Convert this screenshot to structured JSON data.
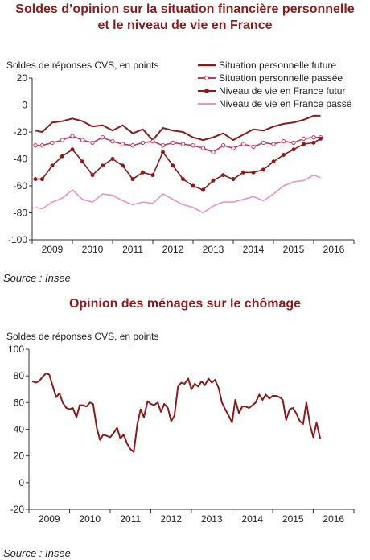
{
  "chart_data": [
    {
      "type": "line",
      "title": "Soldes d’opinion sur la situation financière personnelle",
      "subtitle": "et le niveau de vie en France",
      "ylabel": "Soldes de réponses CVS, en points",
      "ylim": [
        -100,
        20
      ],
      "yticks": [
        20,
        0,
        -20,
        -40,
        -60,
        -80,
        -100
      ],
      "xticks": [
        "2009",
        "2010",
        "2011",
        "2012",
        "2013",
        "2014",
        "2015",
        "2016"
      ],
      "xlim": [
        2008.75,
        2016.75
      ],
      "legend_position": "top-right",
      "source": "Source : Insee",
      "series": [
        {
          "name": "Situation personnelle future",
          "color": "#8b1a1a",
          "marker": "none",
          "x": [
            2008.83,
            2009.0,
            2009.25,
            2009.5,
            2009.75,
            2010.0,
            2010.25,
            2010.5,
            2010.75,
            2011.0,
            2011.25,
            2011.5,
            2011.75,
            2012.0,
            2012.25,
            2012.5,
            2012.75,
            2013.0,
            2013.25,
            2013.5,
            2013.75,
            2014.0,
            2014.25,
            2014.5,
            2014.75,
            2015.0,
            2015.25,
            2015.5,
            2015.75,
            2015.92
          ],
          "y": [
            -19,
            -20,
            -13,
            -12,
            -10,
            -12,
            -16,
            -15,
            -19,
            -15,
            -21,
            -18,
            -26,
            -17,
            -19,
            -20,
            -24,
            -26,
            -24,
            -21,
            -26,
            -22,
            -18,
            -19,
            -16,
            -14,
            -13,
            -11,
            -8,
            -8
          ]
        },
        {
          "name": "Situation personnelle passée",
          "color": "#c7375a",
          "marker": "open-circle",
          "x": [
            2008.83,
            2009.0,
            2009.25,
            2009.5,
            2009.75,
            2010.0,
            2010.25,
            2010.5,
            2010.75,
            2011.0,
            2011.25,
            2011.5,
            2011.75,
            2012.0,
            2012.25,
            2012.5,
            2012.75,
            2013.0,
            2013.25,
            2013.5,
            2013.75,
            2014.0,
            2014.25,
            2014.5,
            2014.75,
            2015.0,
            2015.25,
            2015.5,
            2015.75,
            2015.92
          ],
          "y": [
            -30,
            -30,
            -28,
            -26,
            -23,
            -26,
            -28,
            -24,
            -27,
            -29,
            -30,
            -28,
            -27,
            -30,
            -28,
            -29,
            -30,
            -32,
            -35,
            -30,
            -32,
            -29,
            -31,
            -28,
            -29,
            -27,
            -28,
            -25,
            -24,
            -24
          ]
        },
        {
          "name": "Niveau de vie en France futur",
          "color": "#8b1a1a",
          "marker": "filled-dot",
          "x": [
            2008.83,
            2009.0,
            2009.25,
            2009.5,
            2009.75,
            2010.0,
            2010.25,
            2010.5,
            2010.75,
            2011.0,
            2011.25,
            2011.5,
            2011.75,
            2012.0,
            2012.25,
            2012.5,
            2012.75,
            2013.0,
            2013.25,
            2013.5,
            2013.75,
            2014.0,
            2014.25,
            2014.5,
            2014.75,
            2015.0,
            2015.25,
            2015.5,
            2015.75,
            2015.92
          ],
          "y": [
            -55,
            -55,
            -45,
            -38,
            -33,
            -42,
            -52,
            -45,
            -40,
            -45,
            -55,
            -50,
            -52,
            -35,
            -45,
            -55,
            -60,
            -63,
            -56,
            -52,
            -55,
            -50,
            -50,
            -48,
            -42,
            -37,
            -33,
            -29,
            -28,
            -25
          ]
        },
        {
          "name": "Niveau de vie en France passé",
          "color": "#f090c0",
          "marker": "none",
          "x": [
            2008.83,
            2009.0,
            2009.25,
            2009.5,
            2009.75,
            2010.0,
            2010.25,
            2010.5,
            2010.75,
            2011.0,
            2011.25,
            2011.5,
            2011.75,
            2012.0,
            2012.25,
            2012.5,
            2012.75,
            2013.0,
            2013.25,
            2013.5,
            2013.75,
            2014.0,
            2014.25,
            2014.5,
            2014.75,
            2015.0,
            2015.25,
            2015.5,
            2015.75,
            2015.92
          ],
          "y": [
            -76,
            -77,
            -72,
            -69,
            -63,
            -70,
            -72,
            -66,
            -67,
            -71,
            -74,
            -72,
            -73,
            -66,
            -70,
            -74,
            -76,
            -80,
            -75,
            -72,
            -72,
            -70,
            -68,
            -71,
            -66,
            -60,
            -57,
            -56,
            -52,
            -54
          ]
        }
      ]
    },
    {
      "type": "line",
      "title": "Opinion des ménages sur le chômage",
      "ylabel": "Soldes de réponses CVS, en points",
      "ylim": [
        -20,
        100
      ],
      "yticks": [
        100,
        80,
        60,
        40,
        20,
        0,
        -20
      ],
      "xticks": [
        "2009",
        "2010",
        "2011",
        "2012",
        "2013",
        "2014",
        "2015",
        "2016"
      ],
      "xlim": [
        2008.75,
        2016.75
      ],
      "source": "Source : Insee",
      "series": [
        {
          "color": "#8b1a1a",
          "marker": "none",
          "x": [
            2008.83,
            2008.92,
            2009.0,
            2009.08,
            2009.17,
            2009.25,
            2009.33,
            2009.42,
            2009.5,
            2009.58,
            2009.67,
            2009.75,
            2009.83,
            2009.92,
            2010.0,
            2010.08,
            2010.17,
            2010.25,
            2010.33,
            2010.42,
            2010.5,
            2010.58,
            2010.67,
            2010.75,
            2010.83,
            2010.92,
            2011.0,
            2011.08,
            2011.17,
            2011.25,
            2011.33,
            2011.42,
            2011.5,
            2011.58,
            2011.67,
            2011.75,
            2011.83,
            2011.92,
            2012.0,
            2012.08,
            2012.17,
            2012.25,
            2012.33,
            2012.42,
            2012.5,
            2012.58,
            2012.67,
            2012.75,
            2012.83,
            2012.92,
            2013.0,
            2013.08,
            2013.17,
            2013.25,
            2013.33,
            2013.42,
            2013.5,
            2013.58,
            2013.67,
            2013.75,
            2013.83,
            2013.92,
            2014.0,
            2014.08,
            2014.17,
            2014.25,
            2014.33,
            2014.42,
            2014.5,
            2014.58,
            2014.67,
            2014.75,
            2014.83,
            2014.92,
            2015.0,
            2015.08,
            2015.17,
            2015.25,
            2015.33,
            2015.42,
            2015.5,
            2015.58,
            2015.67,
            2015.75,
            2015.83,
            2015.92
          ],
          "y": [
            76,
            75,
            76,
            79,
            82,
            81,
            73,
            64,
            67,
            60,
            56,
            55,
            56,
            49,
            58,
            58,
            57,
            60,
            59,
            41,
            32,
            36,
            35,
            34,
            37,
            41,
            33,
            36,
            29,
            25,
            23,
            44,
            55,
            49,
            61,
            59,
            58,
            60,
            53,
            59,
            56,
            46,
            50,
            72,
            75,
            74,
            78,
            70,
            74,
            72,
            76,
            73,
            78,
            75,
            77,
            71,
            60,
            55,
            50,
            45,
            62,
            52,
            57,
            57,
            56,
            58,
            60,
            66,
            62,
            66,
            63,
            65,
            65,
            64,
            62,
            47,
            55,
            56,
            52,
            46,
            44,
            60,
            43,
            34,
            45,
            33
          ]
        }
      ]
    }
  ]
}
